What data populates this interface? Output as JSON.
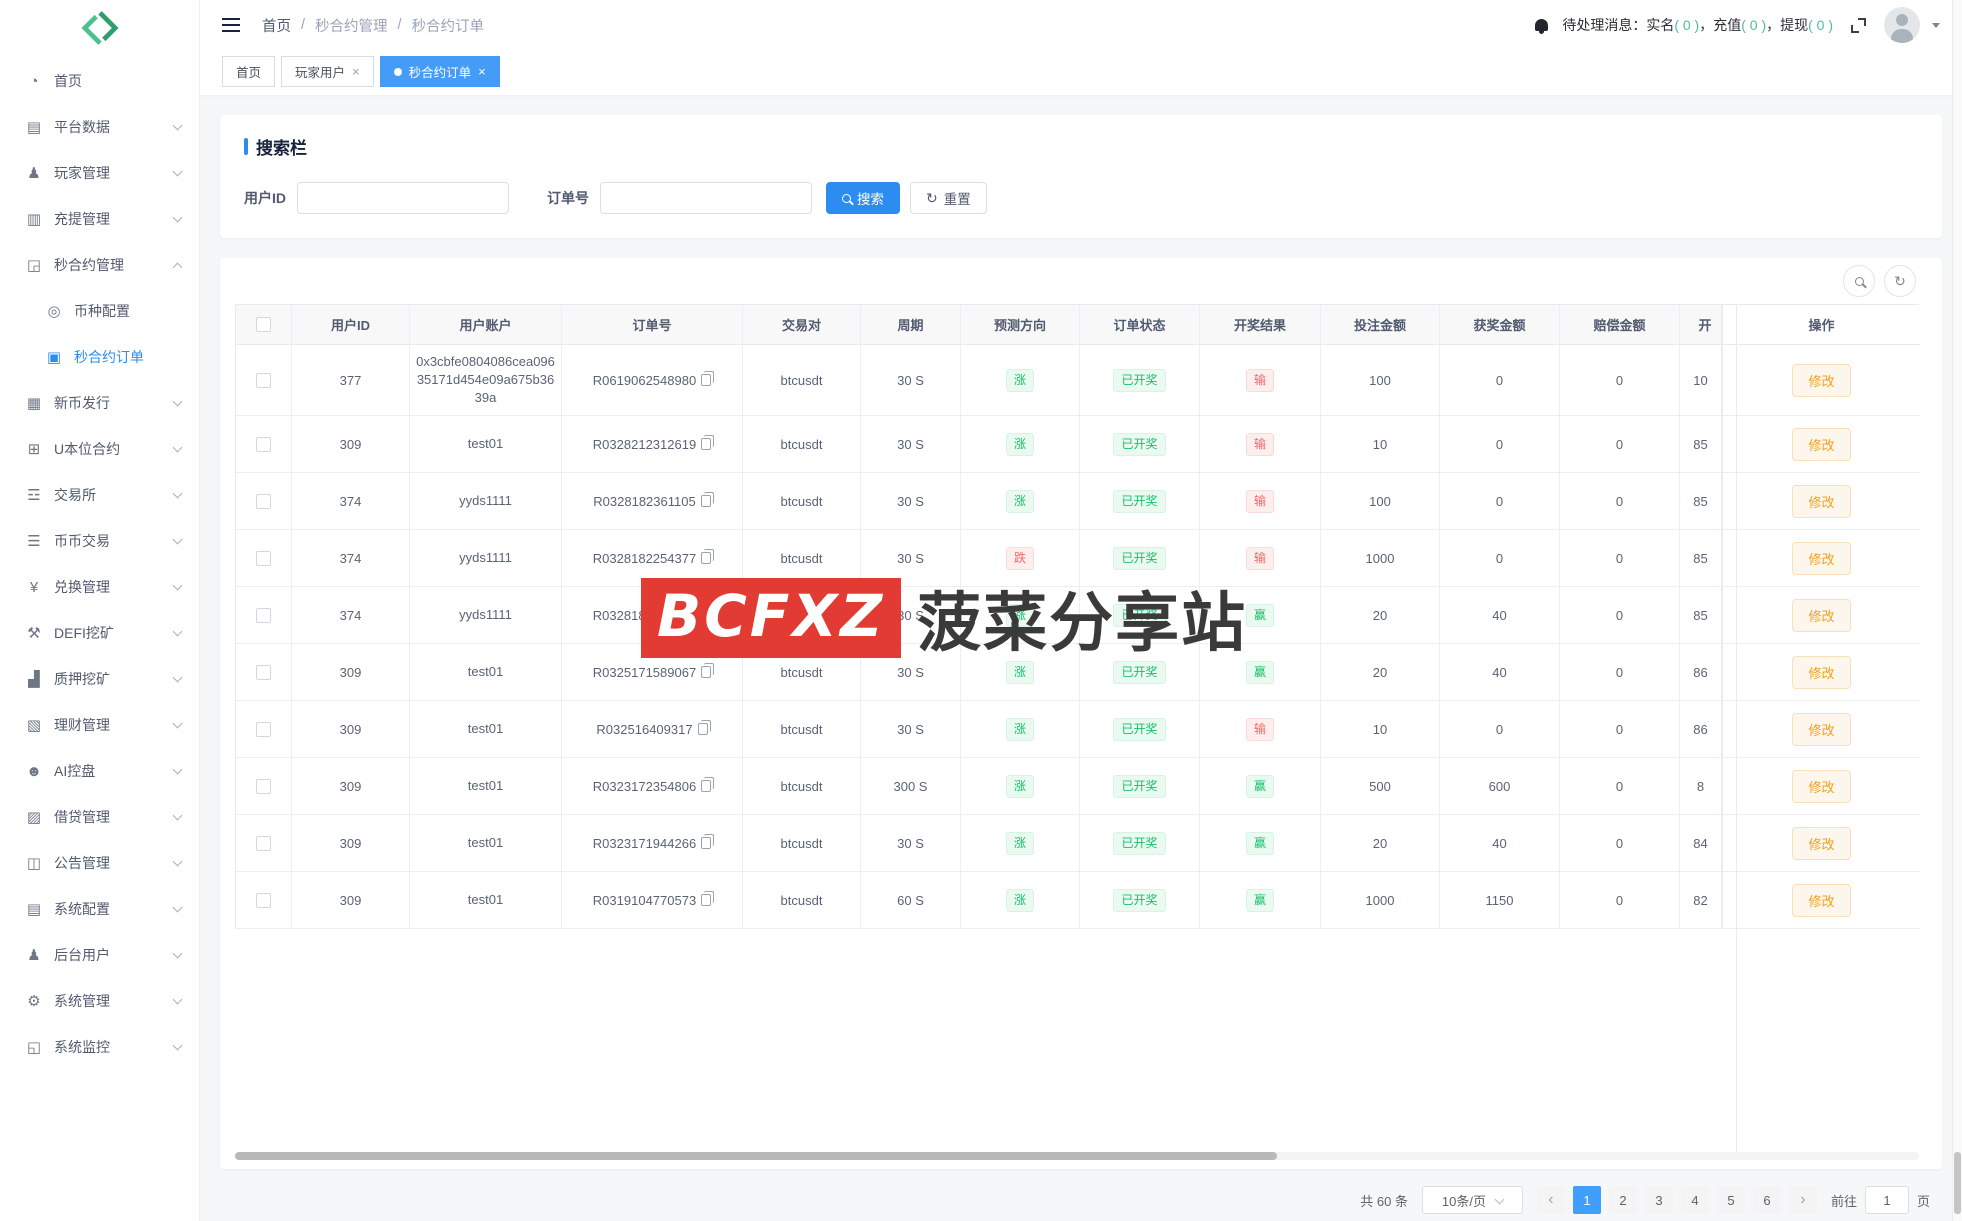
{
  "colors": {
    "primary": "#2d8cf0",
    "success": "#19be6b",
    "danger": "#f16864",
    "warning": "#f0a020",
    "watermark_red": "#e23b33"
  },
  "sidebar": {
    "menu": [
      {
        "id": "home",
        "icon": "dashboard-icon",
        "glyph": "◔",
        "label": "首页",
        "chevron": false
      },
      {
        "id": "platform-data",
        "icon": "platform-data-icon",
        "glyph": "▤",
        "label": "平台数据",
        "chevron": true
      },
      {
        "id": "player-mgmt",
        "icon": "player-icon",
        "glyph": "♟",
        "label": "玩家管理",
        "chevron": true
      },
      {
        "id": "deposit-withdraw",
        "icon": "deposit-withdraw-icon",
        "glyph": "▥",
        "label": "充提管理",
        "chevron": true
      },
      {
        "id": "second-contract",
        "icon": "second-contract-icon",
        "glyph": "◲",
        "label": "秒合约管理",
        "chevron": true,
        "expanded": true,
        "children": [
          {
            "id": "coin-config",
            "icon": "coin-config-icon",
            "glyph": "◎",
            "label": "币种配置",
            "active": false
          },
          {
            "id": "second-contract-orders",
            "icon": "order-doc-icon",
            "glyph": "▣",
            "label": "秒合约订单",
            "active": true
          }
        ]
      },
      {
        "id": "new-coin",
        "icon": "new-coin-icon",
        "glyph": "▦",
        "label": "新币发行",
        "chevron": true
      },
      {
        "id": "u-contract",
        "icon": "u-contract-icon",
        "glyph": "⊞",
        "label": "U本位合约",
        "chevron": true
      },
      {
        "id": "exchange",
        "icon": "exchange-icon",
        "glyph": "☲",
        "label": "交易所",
        "chevron": true
      },
      {
        "id": "coin-trade",
        "icon": "coin-trade-icon",
        "glyph": "☰",
        "label": "币币交易",
        "chevron": true
      },
      {
        "id": "swap-mgmt",
        "icon": "swap-icon",
        "glyph": "¥",
        "label": "兑换管理",
        "chevron": true
      },
      {
        "id": "defi-mining",
        "icon": "defi-mining-icon",
        "glyph": "⚒",
        "label": "DEFI挖矿",
        "chevron": true
      },
      {
        "id": "stake-mining",
        "icon": "stake-mining-icon",
        "glyph": "▟",
        "label": "质押挖矿",
        "chevron": true
      },
      {
        "id": "wealth-mgmt",
        "icon": "wealth-icon",
        "glyph": "▧",
        "label": "理财管理",
        "chevron": true
      },
      {
        "id": "ai-control",
        "icon": "ai-control-icon",
        "glyph": "☻",
        "label": "AI控盘",
        "chevron": true
      },
      {
        "id": "loan-mgmt",
        "icon": "loan-icon",
        "glyph": "▨",
        "label": "借贷管理",
        "chevron": true
      },
      {
        "id": "notice-mgmt",
        "icon": "notice-icon",
        "glyph": "◫",
        "label": "公告管理",
        "chevron": true
      },
      {
        "id": "system-config",
        "icon": "system-config-icon",
        "glyph": "▤",
        "label": "系统配置",
        "chevron": true
      },
      {
        "id": "admin-users",
        "icon": "admin-users-icon",
        "glyph": "♟",
        "label": "后台用户",
        "chevron": true
      },
      {
        "id": "system-mgmt",
        "icon": "system-mgmt-icon",
        "glyph": "⚙",
        "label": "系统管理",
        "chevron": true
      },
      {
        "id": "system-monitor",
        "icon": "system-monitor-icon",
        "glyph": "◱",
        "label": "系统监控",
        "chevron": true
      }
    ]
  },
  "header": {
    "breadcrumb": [
      "首页",
      "秒合约管理",
      "秒合约订单"
    ],
    "notify": {
      "prefix": "待处理消息：",
      "items": [
        {
          "label": "实名",
          "count": "0"
        },
        {
          "label": "充值",
          "count": "0"
        },
        {
          "label": "提现",
          "count": "0"
        }
      ]
    }
  },
  "tabs": [
    {
      "label": "首页",
      "closable": false,
      "active": false
    },
    {
      "label": "玩家用户",
      "closable": true,
      "active": false
    },
    {
      "label": "秒合约订单",
      "closable": true,
      "active": true
    }
  ],
  "search": {
    "title": "搜索栏",
    "user_id_label": "用户ID",
    "order_no_label": "订单号",
    "user_id_value": "",
    "order_no_value": "",
    "search_label": "搜索",
    "reset_label": "重置"
  },
  "table": {
    "columns": [
      "",
      "用户ID",
      "用户账户",
      "订单号",
      "交易对",
      "周期",
      "预测方向",
      "订单状态",
      "开奖结果",
      "投注金额",
      "获奖金额",
      "赔偿金额",
      "开",
      "操作"
    ],
    "action_label": "修改",
    "rows": [
      {
        "user_id": "377",
        "account": "0x3cbfe0804086cea09635171d454e09a675b3639a",
        "order_no": "R0619062548980",
        "pair": "btcusdt",
        "period": "30 S",
        "direction": "涨",
        "direction_type": "up",
        "status": "已开奖",
        "result": "输",
        "result_type": "lose",
        "bet": "100",
        "win": "0",
        "compensate": "0",
        "open_partial": "10"
      },
      {
        "user_id": "309",
        "account": "test01",
        "order_no": "R0328212312619",
        "pair": "btcusdt",
        "period": "30 S",
        "direction": "涨",
        "direction_type": "up",
        "status": "已开奖",
        "result": "输",
        "result_type": "lose",
        "bet": "10",
        "win": "0",
        "compensate": "0",
        "open_partial": "85"
      },
      {
        "user_id": "374",
        "account": "yyds1111",
        "order_no": "R0328182361105",
        "pair": "btcusdt",
        "period": "30 S",
        "direction": "涨",
        "direction_type": "up",
        "status": "已开奖",
        "result": "输",
        "result_type": "lose",
        "bet": "100",
        "win": "0",
        "compensate": "0",
        "open_partial": "85"
      },
      {
        "user_id": "374",
        "account": "yyds1111",
        "order_no": "R0328182254377",
        "pair": "btcusdt",
        "period": "30 S",
        "direction": "跌",
        "direction_type": "down",
        "status": "已开奖",
        "result": "输",
        "result_type": "lose",
        "bet": "1000",
        "win": "0",
        "compensate": "0",
        "open_partial": "85"
      },
      {
        "user_id": "374",
        "account": "yyds1111",
        "order_no": "R0328182179698",
        "pair": "btcusdt",
        "period": "30 S",
        "direction": "涨",
        "direction_type": "up",
        "status": "已开奖",
        "result": "赢",
        "result_type": "win",
        "bet": "20",
        "win": "40",
        "compensate": "0",
        "open_partial": "85"
      },
      {
        "user_id": "309",
        "account": "test01",
        "order_no": "R0325171589067",
        "pair": "btcusdt",
        "period": "30 S",
        "direction": "涨",
        "direction_type": "up",
        "status": "已开奖",
        "result": "赢",
        "result_type": "win",
        "bet": "20",
        "win": "40",
        "compensate": "0",
        "open_partial": "86"
      },
      {
        "user_id": "309",
        "account": "test01",
        "order_no": "R032516409317",
        "pair": "btcusdt",
        "period": "30 S",
        "direction": "涨",
        "direction_type": "up",
        "status": "已开奖",
        "result": "输",
        "result_type": "lose",
        "bet": "10",
        "win": "0",
        "compensate": "0",
        "open_partial": "86"
      },
      {
        "user_id": "309",
        "account": "test01",
        "order_no": "R0323172354806",
        "pair": "btcusdt",
        "period": "300 S",
        "direction": "涨",
        "direction_type": "up",
        "status": "已开奖",
        "result": "赢",
        "result_type": "win",
        "bet": "500",
        "win": "600",
        "compensate": "0",
        "open_partial": "8"
      },
      {
        "user_id": "309",
        "account": "test01",
        "order_no": "R0323171944266",
        "pair": "btcusdt",
        "period": "30 S",
        "direction": "涨",
        "direction_type": "up",
        "status": "已开奖",
        "result": "赢",
        "result_type": "win",
        "bet": "20",
        "win": "40",
        "compensate": "0",
        "open_partial": "84"
      },
      {
        "user_id": "309",
        "account": "test01",
        "order_no": "R0319104770573",
        "pair": "btcusdt",
        "period": "60 S",
        "direction": "涨",
        "direction_type": "up",
        "status": "已开奖",
        "result": "赢",
        "result_type": "win",
        "bet": "1000",
        "win": "1150",
        "compensate": "0",
        "open_partial": "82"
      }
    ]
  },
  "pagination": {
    "total_text": "共 60 条",
    "page_size": "10条/页",
    "pages": [
      "1",
      "2",
      "3",
      "4",
      "5",
      "6"
    ],
    "active_page": "1",
    "goto_label": "前往",
    "goto_value": "1",
    "goto_suffix": "页"
  },
  "watermark": {
    "logo_text": "BCFXZ",
    "site_text": "菠菜分享站"
  }
}
